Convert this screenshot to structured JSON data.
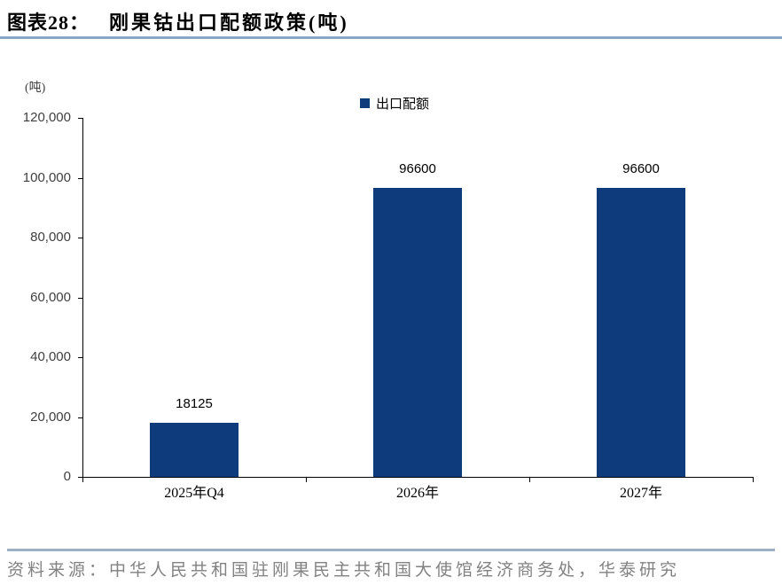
{
  "header": {
    "figure_label": "图表28：",
    "title": "刚果钴出口配额政策(吨)"
  },
  "chart": {
    "unit_label": "(吨)",
    "legend_label": "出口配额"
  },
  "chart_data": {
    "type": "bar",
    "title": "刚果钴出口配额政策(吨)",
    "series_name": "出口配额",
    "categories": [
      "2025年Q4",
      "2026年",
      "2027年"
    ],
    "values": [
      18125,
      96600,
      96600
    ],
    "data_labels": [
      "18125",
      "96600",
      "96600"
    ],
    "xlabel": "",
    "ylabel": "(吨)",
    "ylim": [
      0,
      120000
    ],
    "ytick_step": 20000,
    "ytick_labels": [
      "0",
      "20,000",
      "40,000",
      "60,000",
      "80,000",
      "100,000",
      "120,000"
    ],
    "grid": false,
    "legend_position": "top-center",
    "bar_color": "#0E3B7C"
  },
  "colors": {
    "bar": "#0E3B7C",
    "title_rule": "#8CA6C6",
    "footer_rule": "#9DAFC3",
    "axis": "#000000",
    "tick_label": "#3f3f3f",
    "source_text": "#828282"
  },
  "footer": {
    "source": "资料来源：中华人民共和国驻刚果民主共和国大使馆经济商务处，华泰研究"
  }
}
